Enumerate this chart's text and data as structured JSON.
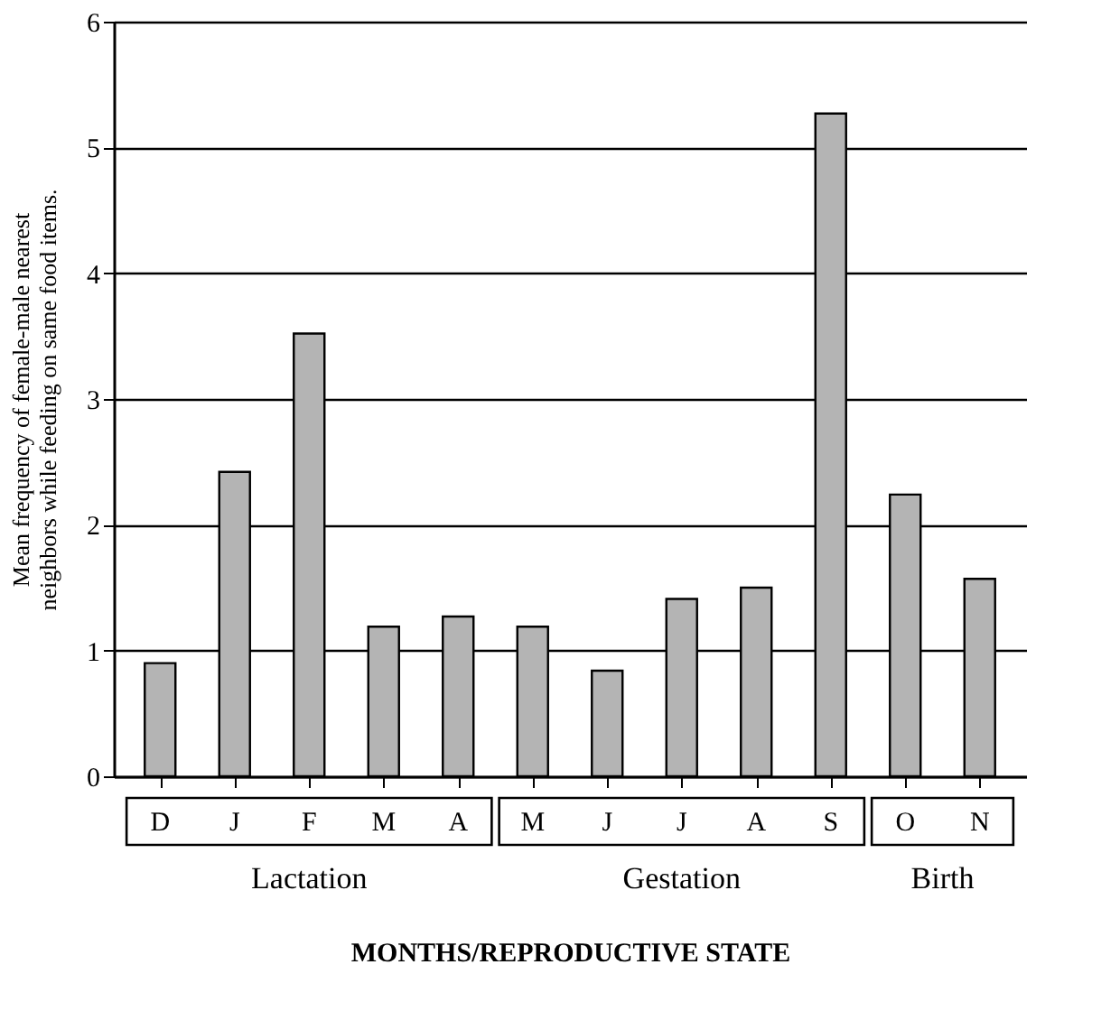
{
  "chart_data": {
    "type": "bar",
    "xlabel": "MONTHS/REPRODUCTIVE STATE",
    "ylabel": "Mean frequency of female-male nearest neighbors while feeding on same food items.",
    "categories": [
      "D",
      "J",
      "F",
      "M",
      "A",
      "M",
      "J",
      "J",
      "A",
      "S",
      "O",
      "N"
    ],
    "values": [
      0.9,
      2.42,
      3.52,
      1.19,
      1.27,
      1.19,
      0.84,
      1.41,
      1.5,
      5.27,
      2.24,
      1.57
    ],
    "color": "#b4b4b4",
    "ylim": [
      0,
      6
    ],
    "yticks": [
      0,
      1,
      2,
      3,
      4,
      5,
      6
    ],
    "grid": "y",
    "annotations": [
      "Lactation",
      "Gestation",
      "Birth"
    ]
  }
}
